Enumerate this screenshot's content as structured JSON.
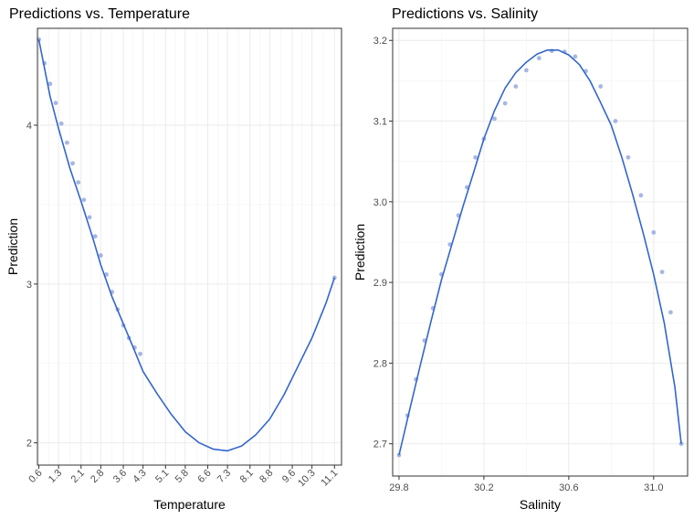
{
  "chart_data": [
    {
      "type": "scatter",
      "title": "Predictions vs. Temperature",
      "xlabel": "Temperature",
      "ylabel": "Prediction",
      "xlim": [
        0.55,
        11.35
      ],
      "ylim": [
        1.86,
        4.61
      ],
      "x_ticks": [
        0.6,
        1.3,
        2.1,
        2.8,
        3.6,
        4.3,
        5.1,
        5.8,
        6.6,
        7.3,
        8.1,
        8.8,
        9.6,
        10.3,
        11.1
      ],
      "x_tick_labels": [
        "0.6",
        "1.3",
        "2.1",
        "2.8",
        "3.6",
        "4.3",
        "5.1",
        "5.8",
        "6.6",
        "7.3",
        "8.1",
        "8.8",
        "9.6",
        "10.3",
        "11.1"
      ],
      "x_tick_rotation": 45,
      "y_ticks": [
        2,
        3,
        4
      ],
      "y_tick_labels": [
        "2",
        "3",
        "4"
      ],
      "grid": true,
      "series": [
        {
          "color": "#3366cc",
          "x": [
            0.6,
            1.0,
            1.3,
            1.7,
            2.1,
            2.5,
            2.8,
            3.2,
            3.6,
            4.0,
            4.3,
            4.8,
            5.3,
            5.8,
            6.3,
            6.8,
            7.3,
            7.8,
            8.3,
            8.8,
            9.3,
            9.8,
            10.3,
            10.8,
            11.1
          ],
          "y": [
            4.54,
            4.18,
            3.98,
            3.73,
            3.52,
            3.3,
            3.12,
            2.92,
            2.75,
            2.58,
            2.45,
            2.31,
            2.18,
            2.07,
            2.0,
            1.96,
            1.95,
            1.98,
            2.05,
            2.15,
            2.3,
            2.48,
            2.66,
            2.88,
            3.04
          ]
        }
      ],
      "points": {
        "color": "#8a9fd9",
        "x": [
          0.6,
          0.8,
          1.0,
          1.2,
          1.4,
          1.6,
          1.8,
          2.0,
          2.2,
          2.4,
          2.6,
          2.8,
          3.0,
          3.2,
          3.4,
          3.6,
          3.8,
          4.0,
          4.2,
          11.1
        ],
        "y": [
          4.54,
          4.39,
          4.26,
          4.14,
          4.01,
          3.89,
          3.76,
          3.64,
          3.53,
          3.42,
          3.3,
          3.18,
          3.06,
          2.95,
          2.84,
          2.74,
          2.66,
          2.6,
          2.56,
          3.04
        ]
      }
    },
    {
      "type": "scatter",
      "title": "Predictions vs. Salinity",
      "xlabel": "Salinity",
      "ylabel": "Prediction",
      "xlim": [
        29.77,
        31.16
      ],
      "ylim": [
        2.66,
        3.215
      ],
      "x_ticks": [
        29.8,
        30.2,
        30.6,
        31.0
      ],
      "x_tick_labels": [
        "29.8",
        "30.2",
        "30.6",
        "31.0"
      ],
      "y_ticks": [
        2.7,
        2.8,
        2.9,
        3.0,
        3.1,
        3.2
      ],
      "y_tick_labels": [
        "2.7",
        "2.8",
        "2.9",
        "3.0",
        "3.1",
        "3.2"
      ],
      "grid": true,
      "series": [
        {
          "color": "#3366cc",
          "x": [
            29.8,
            29.85,
            29.9,
            29.95,
            30.0,
            30.05,
            30.1,
            30.15,
            30.2,
            30.25,
            30.3,
            30.35,
            30.4,
            30.45,
            30.5,
            30.55,
            30.6,
            30.65,
            30.7,
            30.75,
            30.8,
            30.85,
            30.9,
            30.95,
            31.0,
            31.05,
            31.1,
            31.13
          ],
          "y": [
            2.686,
            2.742,
            2.797,
            2.851,
            2.903,
            2.948,
            2.993,
            3.035,
            3.078,
            3.113,
            3.141,
            3.16,
            3.173,
            3.183,
            3.188,
            3.188,
            3.182,
            3.17,
            3.15,
            3.123,
            3.095,
            3.055,
            3.01,
            2.962,
            2.91,
            2.85,
            2.77,
            2.7
          ]
        }
      ],
      "points": {
        "color": "#8a9fd9",
        "x": [
          29.8,
          29.84,
          29.88,
          29.92,
          29.96,
          30.0,
          30.04,
          30.08,
          30.12,
          30.16,
          30.2,
          30.25,
          30.3,
          30.35,
          30.4,
          30.46,
          30.52,
          30.58,
          30.63,
          30.68,
          30.75,
          30.82,
          30.88,
          30.94,
          31.0,
          31.04,
          31.08,
          31.13
        ],
        "y": [
          2.686,
          2.735,
          2.78,
          2.828,
          2.868,
          2.91,
          2.947,
          2.983,
          3.018,
          3.055,
          3.078,
          3.103,
          3.122,
          3.143,
          3.163,
          3.178,
          3.187,
          3.186,
          3.18,
          3.162,
          3.143,
          3.1,
          3.055,
          3.008,
          2.962,
          2.913,
          2.863,
          2.7
        ]
      }
    }
  ]
}
